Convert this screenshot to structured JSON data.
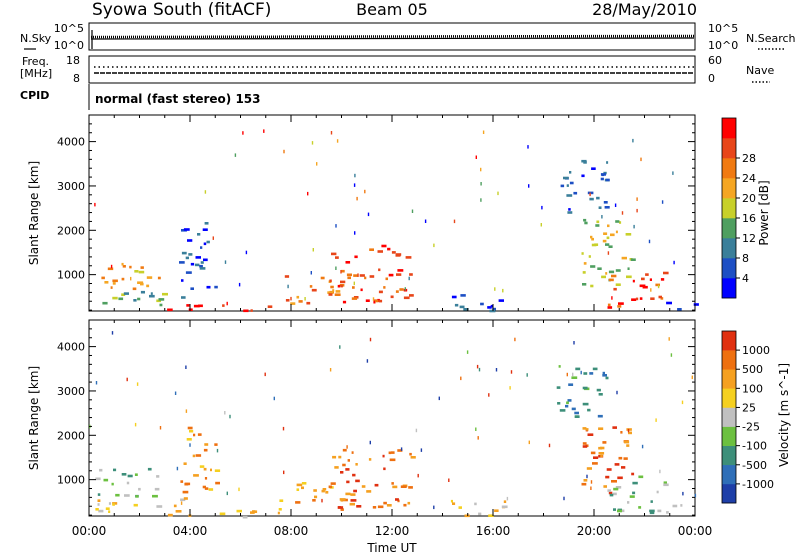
{
  "header": {
    "station": "Syowa South (fitACF)",
    "beam": "Beam 05",
    "date": "28/May/2010"
  },
  "top_panel": {
    "left_label": "N.Sky",
    "right_label": "N.Search",
    "left_ticks": [
      "10^5",
      "10^0"
    ],
    "right_ticks": [
      "10^5",
      "10^0"
    ]
  },
  "freq_panel": {
    "left_label_1": "Freq.",
    "left_label_2": "[MHz]",
    "right_label": "Nave",
    "left_ticks": [
      "18",
      "8"
    ],
    "right_ticks": [
      "60",
      "0"
    ]
  },
  "cpid": {
    "label": "CPID",
    "value": "normal (fast stereo) 153"
  },
  "x_axis": {
    "label": "Time UT",
    "ticks": [
      "00:00",
      "04:00",
      "08:00",
      "12:00",
      "16:00",
      "20:00",
      "00:00"
    ]
  },
  "chart_data": [
    {
      "type": "heatmap",
      "panel": "power",
      "ylabel": "Slant Range [km]",
      "yticks": [
        1000,
        2000,
        3000,
        4000
      ],
      "ylim": [
        180,
        4600
      ],
      "xlim_hours": [
        0,
        24
      ],
      "colorbar": {
        "label": "Power [dB]",
        "ticks": [
          "4",
          "8",
          "12",
          "16",
          "20",
          "24",
          "28"
        ],
        "colors": [
          "#0000ff",
          "#1d4fc4",
          "#3a7f9a",
          "#4f9f60",
          "#c8d02a",
          "#f5a623",
          "#f07a12",
          "#e8461a",
          "#ff0000"
        ]
      },
      "regions": [
        {
          "t0": 0.2,
          "t1": 2.8,
          "r0": 650,
          "r1": 1300,
          "level": 5
        },
        {
          "t0": 0.2,
          "t1": 4.0,
          "r0": 300,
          "r1": 650,
          "level": 3
        },
        {
          "t0": 3.5,
          "t1": 5.0,
          "r0": 700,
          "r1": 2200,
          "level": 1
        },
        {
          "t0": 2.8,
          "t1": 7.5,
          "r0": 180,
          "r1": 350,
          "level": 8
        },
        {
          "t0": 7.5,
          "t1": 10.0,
          "r0": 350,
          "r1": 1000,
          "level": 6
        },
        {
          "t0": 9.5,
          "t1": 12.8,
          "r0": 400,
          "r1": 1700,
          "level": 7
        },
        {
          "t0": 14.0,
          "t1": 16.5,
          "r0": 200,
          "r1": 600,
          "level": 1
        },
        {
          "t0": 18.5,
          "t1": 20.5,
          "r0": 2400,
          "r1": 3600,
          "level": 1
        },
        {
          "t0": 19.5,
          "t1": 21.5,
          "r0": 700,
          "r1": 2400,
          "level": 4
        },
        {
          "t0": 20.5,
          "t1": 22.8,
          "r0": 250,
          "r1": 1100,
          "level": 7
        },
        {
          "t0": 22.8,
          "t1": 24.0,
          "r0": 200,
          "r1": 450,
          "level": 1
        }
      ]
    },
    {
      "type": "heatmap",
      "panel": "velocity",
      "ylabel": "Slant Range [km]",
      "yticks": [
        1000,
        2000,
        3000,
        4000
      ],
      "ylim": [
        180,
        4600
      ],
      "xlim_hours": [
        0,
        24
      ],
      "colorbar": {
        "label": "Velocity [m s^-1]",
        "ticks": [
          "1000",
          "500",
          "100",
          "25",
          "-25",
          "-100",
          "-500",
          "-1000"
        ],
        "colors": [
          "#1e3fa8",
          "#2f6fb8",
          "#3d8f7a",
          "#6cc040",
          "#c0c0c0",
          "#f5d020",
          "#f5a020",
          "#ee7010",
          "#e03010"
        ]
      },
      "regions": [
        {
          "t0": 0.2,
          "t1": 2.8,
          "r0": 650,
          "r1": 1300,
          "level": 3
        },
        {
          "t0": 0.2,
          "t1": 4.0,
          "r0": 300,
          "r1": 650,
          "level": 5
        },
        {
          "t0": 3.5,
          "t1": 5.0,
          "r0": 700,
          "r1": 2200,
          "level": 6
        },
        {
          "t0": 2.8,
          "t1": 7.5,
          "r0": 180,
          "r1": 350,
          "level": 5
        },
        {
          "t0": 7.5,
          "t1": 10.0,
          "r0": 350,
          "r1": 1000,
          "level": 6
        },
        {
          "t0": 9.5,
          "t1": 12.8,
          "r0": 400,
          "r1": 1700,
          "level": 7
        },
        {
          "t0": 14.0,
          "t1": 16.5,
          "r0": 200,
          "r1": 600,
          "level": 5
        },
        {
          "t0": 18.5,
          "t1": 20.5,
          "r0": 2400,
          "r1": 3600,
          "level": 2
        },
        {
          "t0": 19.5,
          "t1": 21.5,
          "r0": 700,
          "r1": 2400,
          "level": 7
        },
        {
          "t0": 20.5,
          "t1": 22.8,
          "r0": 250,
          "r1": 1100,
          "level": 3
        },
        {
          "t0": 22.8,
          "t1": 24.0,
          "r0": 200,
          "r1": 450,
          "level": 4
        }
      ]
    }
  ]
}
